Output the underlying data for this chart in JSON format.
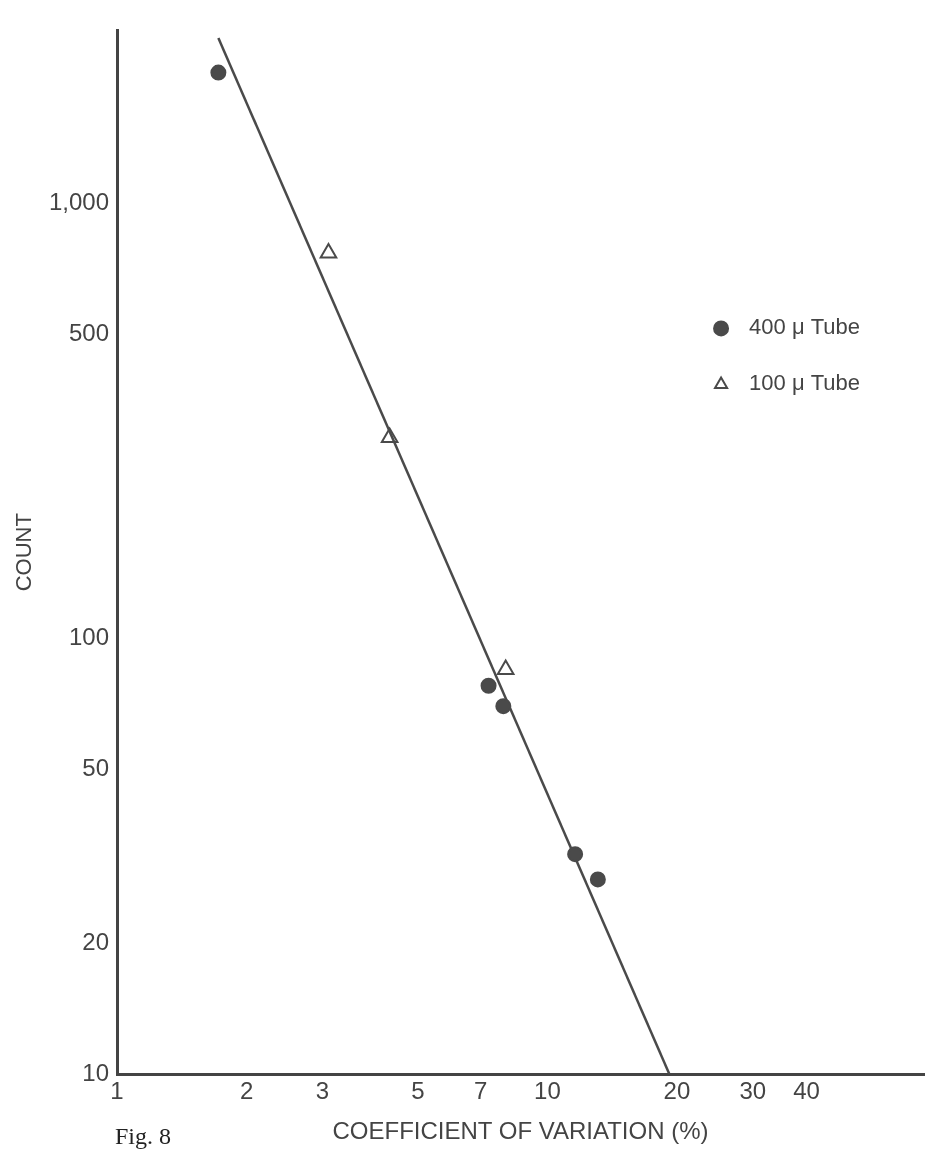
{
  "chart_data": {
    "type": "scatter",
    "xlabel": "COEFFICIENT OF VARIATION (%)",
    "ylabel": "COUNT",
    "annotations": [
      "Fig. 8"
    ],
    "log": "xy",
    "grid": false,
    "legend": "top right",
    "xlim": [
      1,
      75
    ],
    "ylim": [
      10,
      2500
    ],
    "xticks": [
      1,
      2,
      3,
      5,
      7,
      10,
      20,
      30,
      40
    ],
    "yticks": [
      10,
      20,
      50,
      100,
      500,
      {
        "value": 1000,
        "label": "1,000"
      }
    ],
    "series": [
      {
        "name": "400 μ Tube",
        "marker": "circle",
        "color": "#4a4a4a",
        "x": [
          1.72,
          7.3,
          7.9,
          11.6,
          13.1
        ],
        "values": [
          2000,
          78,
          70,
          32,
          28
        ]
      },
      {
        "name": "100 μ Tube",
        "marker": "triangle",
        "color": "#4a4a4a",
        "x": [
          3.1,
          4.3,
          8.0
        ],
        "values": [
          770,
          290,
          85
        ]
      },
      {
        "type": "line",
        "marker": "none",
        "line_style": "solid",
        "color": "#4a4a4a",
        "x": [
          1.72,
          19.2
        ],
        "values": [
          2400,
          10
        ]
      }
    ]
  }
}
